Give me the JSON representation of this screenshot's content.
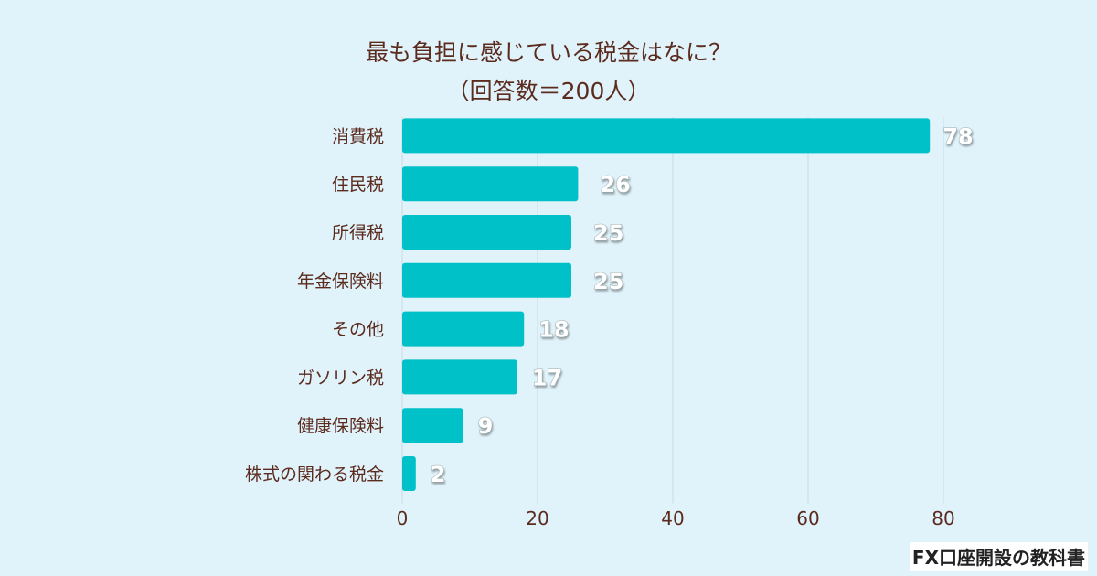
{
  "chart_data": {
    "type": "bar",
    "orientation": "horizontal",
    "title": "最も負担に感じている税金はなに？",
    "subtitle": "（回答数＝200人）",
    "categories": [
      "消費税",
      "住民税",
      "所得税",
      "年金保険料",
      "その他",
      "ガソリン税",
      "健康保険料",
      "株式の関わる税金"
    ],
    "values": [
      78,
      26,
      25,
      25,
      18,
      17,
      9,
      2
    ],
    "xlim": [
      0,
      80
    ],
    "xticks": [
      0,
      20,
      40,
      60,
      80
    ],
    "grid": true,
    "bar_color": "#00c0c8",
    "background_color": "#e0f2fa",
    "data_labels": true
  },
  "credit": "FX口座開設の教科書"
}
